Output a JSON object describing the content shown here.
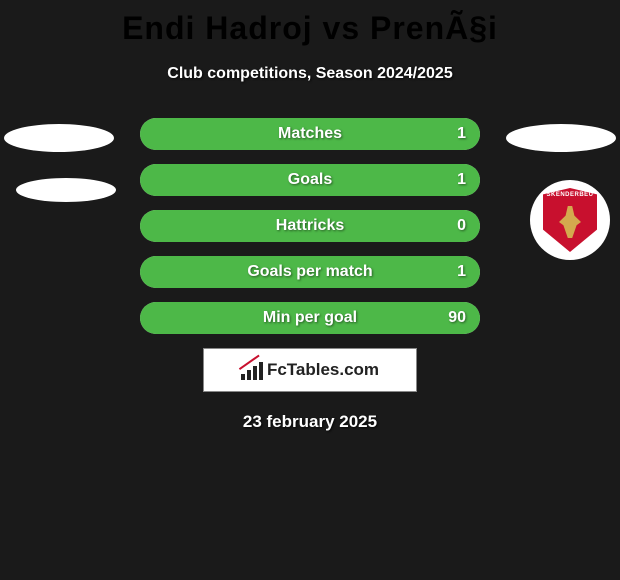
{
  "title": {
    "player1": "Endi Hadroj",
    "vs": "vs",
    "player2": "PrenÃ§i",
    "color": "#4db848"
  },
  "subtitle": "Club competitions, Season 2024/2025",
  "stats": [
    {
      "label": "Matches",
      "value_right": "1",
      "fill_pct": 100
    },
    {
      "label": "Goals",
      "value_right": "1",
      "fill_pct": 100
    },
    {
      "label": "Hattricks",
      "value_right": "0",
      "fill_pct": 100
    },
    {
      "label": "Goals per match",
      "value_right": "1",
      "fill_pct": 100
    },
    {
      "label": "Min per goal",
      "value_right": "90",
      "fill_pct": 100
    }
  ],
  "stat_bar": {
    "track_color": "#d0d0d0",
    "fill_color": "#4db848",
    "label_color": "#ffffff",
    "height": 32,
    "radius": 16
  },
  "badge": {
    "club_name": "SKENDERBEU",
    "shield_color": "#c8102e",
    "figure_color": "#d4a94e"
  },
  "logo": {
    "text": "FcTables.com",
    "bar_color": "#222222",
    "line_color": "#c8102e"
  },
  "date": "23 february 2025",
  "background_color": "#1a1a1a"
}
